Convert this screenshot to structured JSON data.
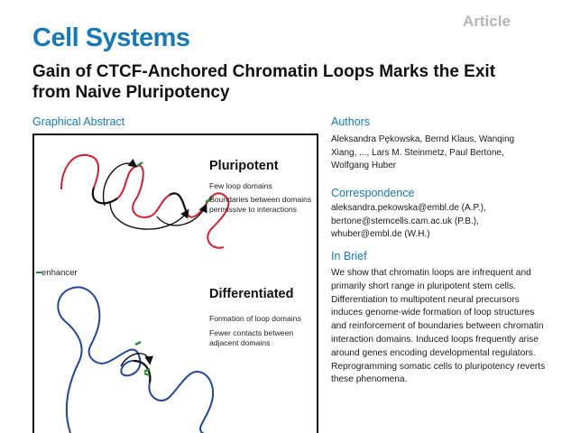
{
  "header": {
    "journal": "Cell Systems",
    "article_type": "Article",
    "title": "Gain of CTCF-Anchored Chromatin Loops Marks the Exit from Naive Pluripotency"
  },
  "graphical_abstract": {
    "heading": "Graphical Abstract",
    "colors": {
      "pluripotent_fiber": "#d91e2b",
      "differentiated_fiber": "#2146a0",
      "enhancer": "#2e8b3a",
      "arrow": "#111111"
    },
    "pluripotent": {
      "label": "Pluripotent",
      "line1": "Few loop domains",
      "line2": "Boundaries between domains permissive to interactions"
    },
    "differentiated": {
      "label": "Differentiated",
      "line1": "Formation of loop domains",
      "line2": "Fewer contacts between adjacent domains"
    },
    "legend_enhancer": "enhancer"
  },
  "authors": {
    "heading": "Authors",
    "text": "Aleksandra Pękowska, Bernd Klaus, Wanqing Xiang, ..., Lars M. Steinmetz, Paul Bertone, Wolfgang Huber"
  },
  "correspondence": {
    "heading": "Correspondence",
    "line1": "aleksandra.pekowska@embl.de (A.P.),",
    "line2": "bertone@stemcells.cam.ac.uk (P.B.),",
    "line3": "whuber@embl.de (W.H.)"
  },
  "in_brief": {
    "heading": "In Brief",
    "text": "We show that chromatin loops are infrequent and primarily short range in pluripotent stem cells. Differentiation to multipotent neural precursors induces genome-wide formation of loop structures and reinforcement of boundaries between chromatin interaction domains. Induced loops frequently arise around genes encoding developmental regulators. Reprogramming somatic cells to pluripotency reverts these phenomena."
  }
}
